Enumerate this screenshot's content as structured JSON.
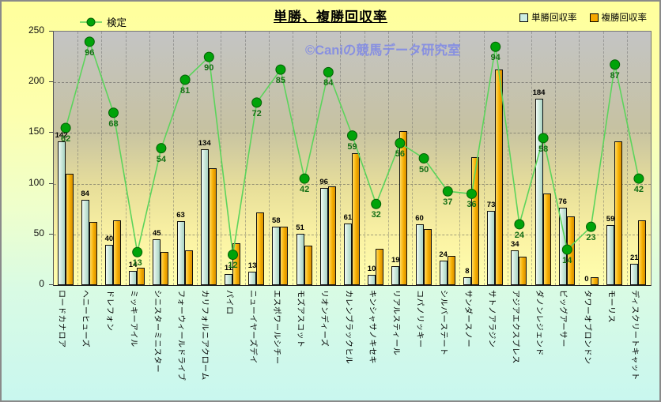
{
  "title": "単勝、複勝回収率",
  "watermark": "©Caniの競馬データ研究室",
  "legend": {
    "kentei": "検定",
    "tansho": "単勝回収率",
    "fukusho": "複勝回収率"
  },
  "colors": {
    "tansho_bar": "#CDEADD",
    "fukusho_bar": "#F6AE00",
    "line": "#5cd45c",
    "dot": "#00a309",
    "dot_edge": "#045f04",
    "kentei_label": "#156f15",
    "watermark": "#7d87e6",
    "plot_top": "#c4c4c4",
    "plot_bottom": "#ffffae",
    "page_top": "#ffff9c",
    "page_bottom": "#c9f7ef"
  },
  "chart_data": {
    "type": "bar",
    "title": "単勝、複勝回収率",
    "categories": [
      "ロードカナロア",
      "ヘニーヒューズ",
      "ドレフォン",
      "ミッキーアイル",
      "シニスターミニスター",
      "フォーウィールドライブ",
      "カリフォルニアクローム",
      "パイロ",
      "ニューイヤーズデイ",
      "エスポワールシチー",
      "モズアスコット",
      "リオンディーズ",
      "カレンブラックヒル",
      "キンシャサノキセキ",
      "リアルスティール",
      "コパノリッキー",
      "シルバーステート",
      "サンダースノー",
      "サトノアラジン",
      "アジアエクスプレス",
      "ダノンレジェンド",
      "ビッグアーサー",
      "タワーオブロンドン",
      "モーリス",
      "ディスクリートキャット"
    ],
    "series": [
      {
        "name": "単勝回収率",
        "type": "bar",
        "values": [
          142,
          84,
          40,
          14,
          45,
          63,
          134,
          11,
          13,
          58,
          51,
          96,
          61,
          10,
          19,
          60,
          24,
          8,
          73,
          34,
          184,
          76,
          0,
          59,
          21
        ]
      },
      {
        "name": "複勝回収率",
        "type": "bar",
        "values": [
          110,
          62,
          64,
          17,
          33,
          34,
          115,
          41,
          72,
          58,
          39,
          97,
          130,
          36,
          152,
          55,
          29,
          126,
          213,
          28,
          90,
          68,
          8,
          142,
          64
        ]
      },
      {
        "name": "検定",
        "type": "line",
        "axis": "secondary",
        "values": [
          62,
          96,
          68,
          13,
          54,
          81,
          90,
          12,
          72,
          85,
          42,
          84,
          59,
          32,
          56,
          50,
          37,
          36,
          94,
          24,
          58,
          14,
          23,
          87,
          42
        ]
      }
    ],
    "ylim": [
      0,
      250
    ],
    "yticks": [
      0,
      50,
      100,
      150,
      200,
      250
    ],
    "secondary_ylim": [
      0,
      100
    ],
    "grid": true,
    "legend_position": "top"
  }
}
